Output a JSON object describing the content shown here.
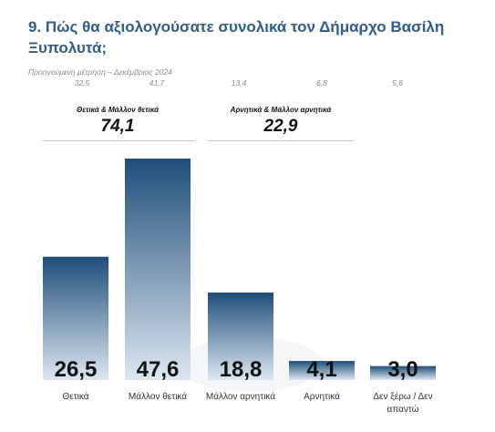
{
  "title": "9. Πώς θα αξιολογούσατε συνολικά τον Δήμαρχο Βασίλη Ξυπολυτά;",
  "previous": {
    "label": "Προηγούμενη μέτρηση – Δεκέμβριος 2024",
    "values": [
      "32,5",
      "41,7",
      "13,4",
      "6,8",
      "5,6"
    ]
  },
  "groups": {
    "positive": {
      "label": "Θετικά & Μάλλον θετικά",
      "total": "74,1"
    },
    "negative": {
      "label": "Αρνητικά & Μάλλον αρνητικά",
      "total": "22,9"
    }
  },
  "colors": {
    "bar_dark": "#1f4e79",
    "bar_light": "#dde7f2",
    "title": "#2f5d8c"
  },
  "chart_data": {
    "type": "bar",
    "categories": [
      "Θετικά",
      "Μάλλον θετικά",
      "Μάλλον αρνητικά",
      "Αρνητικά",
      "Δεν ξέρω / Δεν απαντώ"
    ],
    "values": [
      26.5,
      47.6,
      18.8,
      4.1,
      3.0
    ],
    "value_labels": [
      "26,5",
      "47,6",
      "18,8",
      "4,1",
      "3,0"
    ],
    "ylim": [
      0,
      50
    ],
    "grid": false
  }
}
